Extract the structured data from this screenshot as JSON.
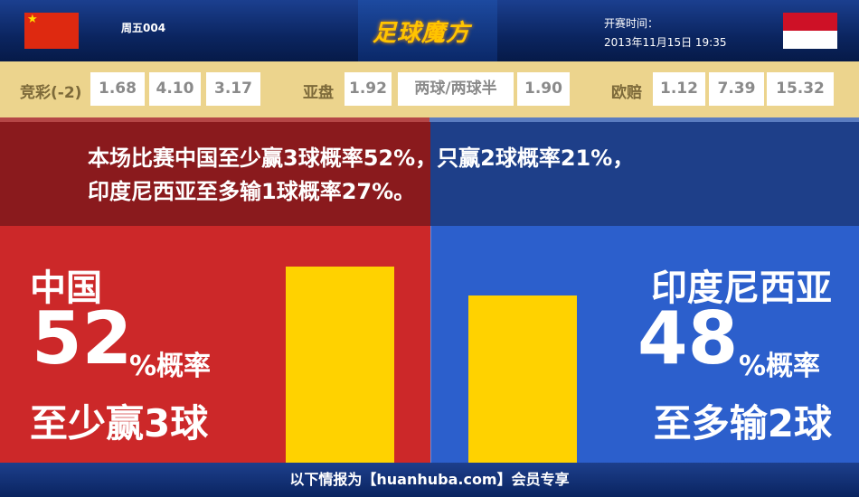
{
  "header": {
    "match_no": "周五004",
    "logo_text": "足球魔方",
    "kickoff_label": "开赛时间：",
    "kickoff_time": "2013年11月15日 19:35",
    "home_flag": "china-flag",
    "away_flag": "indonesia-flag"
  },
  "odds": {
    "jingcai": {
      "label": "竞彩(-2)",
      "values": [
        "1.68",
        "4.10",
        "3.17"
      ]
    },
    "asian": {
      "label": "亚盘",
      "home": "1.92",
      "line": "两球/两球半",
      "away": "1.90"
    },
    "euro": {
      "label": "欧赔",
      "values": [
        "1.12",
        "7.39",
        "15.32"
      ]
    }
  },
  "summary": {
    "line1": "本场比赛中国至少赢3球概率52%，只赢2球概率21%，",
    "line2": "印度尼西亚至多输1球概率27%。"
  },
  "home": {
    "team": "中国",
    "percent": "52",
    "percent_suffix": "%概率",
    "outcome": "至少赢3球"
  },
  "away": {
    "team": "印度尼西亚",
    "percent": "48",
    "percent_suffix": "%概率",
    "outcome": "至多输2球"
  },
  "chart_data": {
    "type": "bar",
    "categories": [
      "中国",
      "印度尼西亚"
    ],
    "values": [
      52,
      48
    ]
  },
  "colors": {
    "home": "#cc2829",
    "away": "#2c5fcc",
    "bar": "#ffd200",
    "odds_bg": "#ecd48d"
  },
  "footer": {
    "text": "以下情报为【huanhuba.com】会员专享"
  }
}
